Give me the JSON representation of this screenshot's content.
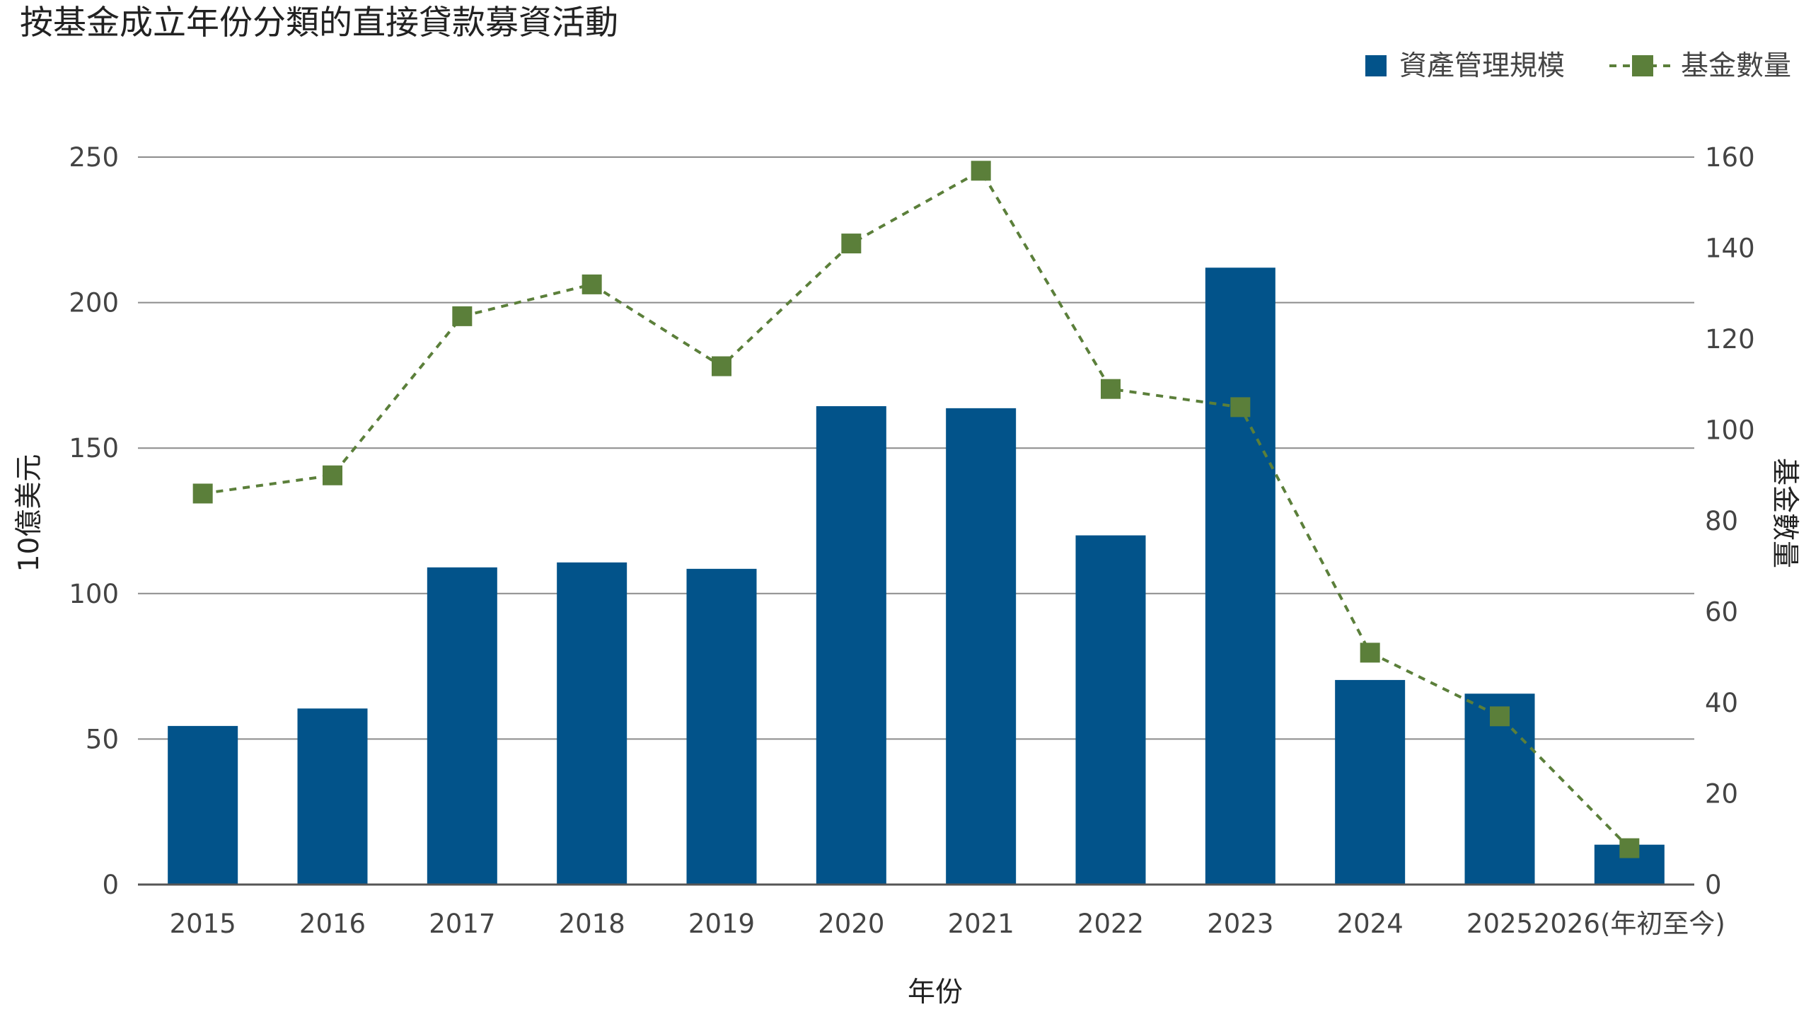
{
  "chart_data": {
    "type": "bar",
    "title": "按基金成立年份分類的直接貸款募資活動",
    "xlabel": "年份",
    "ylabel": "10億美元",
    "y2label": "基金數量",
    "categories": [
      "2015",
      "2016",
      "2017",
      "2018",
      "2019",
      "2020",
      "2021",
      "2022",
      "2023",
      "2024",
      "2025",
      "2026(年初至今)"
    ],
    "series": [
      {
        "name": "資產管理規模",
        "type": "bar",
        "axis": "left",
        "color": "#02538a",
        "values": [
          54.5,
          60.5,
          109.0,
          110.7,
          108.5,
          164.4,
          163.7,
          120.0,
          212.0,
          70.3,
          65.6,
          13.7
        ]
      },
      {
        "name": "基金數量",
        "type": "line",
        "axis": "right",
        "color": "#5b7f3a",
        "line_style": "dashed",
        "marker": "square",
        "values": [
          86,
          90,
          125,
          132,
          114,
          141,
          157,
          109,
          105,
          51,
          37,
          8
        ]
      }
    ],
    "ylim": [
      0,
      250
    ],
    "yticks": [
      "0",
      "50",
      "100",
      "150",
      "200",
      "250"
    ],
    "y2lim": [
      0,
      160
    ],
    "y2ticks": [
      "0",
      "20",
      "40",
      "60",
      "80",
      "100",
      "120",
      "140",
      "160"
    ],
    "grid": true,
    "legend_position": "top-right"
  }
}
